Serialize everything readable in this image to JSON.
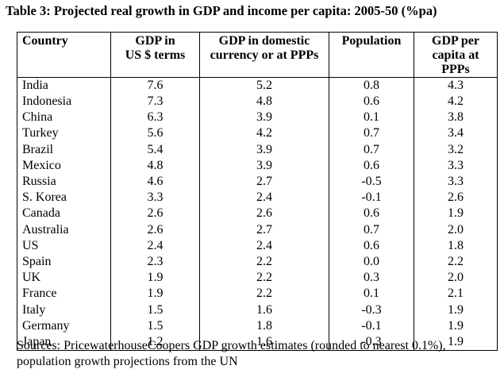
{
  "title": "Table 3: Projected real growth in GDP and income per capita: 2005-50 (%pa)",
  "table": {
    "headers": {
      "country": "Country",
      "gdp_usd": [
        "GDP in",
        "US $ terms"
      ],
      "gdp_domestic": [
        "GDP in domestic",
        "currency or at PPPs"
      ],
      "population": "Population",
      "gdp_per_capita": [
        "GDP per",
        "capita at PPPs"
      ]
    },
    "rows": [
      {
        "country": "India",
        "gdp_usd": "7.6",
        "gdp_domestic": "5.2",
        "population": "0.8",
        "gdp_per_capita": "4.3"
      },
      {
        "country": "Indonesia",
        "gdp_usd": "7.3",
        "gdp_domestic": "4.8",
        "population": "0.6",
        "gdp_per_capita": "4.2"
      },
      {
        "country": "China",
        "gdp_usd": "6.3",
        "gdp_domestic": "3.9",
        "population": "0.1",
        "gdp_per_capita": "3.8"
      },
      {
        "country": "Turkey",
        "gdp_usd": "5.6",
        "gdp_domestic": "4.2",
        "population": "0.7",
        "gdp_per_capita": "3.4"
      },
      {
        "country": "Brazil",
        "gdp_usd": "5.4",
        "gdp_domestic": "3.9",
        "population": "0.7",
        "gdp_per_capita": "3.2"
      },
      {
        "country": "Mexico",
        "gdp_usd": "4.8",
        "gdp_domestic": "3.9",
        "population": "0.6",
        "gdp_per_capita": "3.3"
      },
      {
        "country": "Russia",
        "gdp_usd": "4.6",
        "gdp_domestic": "2.7",
        "population": "-0.5",
        "gdp_per_capita": "3.3"
      },
      {
        "country": "S. Korea",
        "gdp_usd": "3.3",
        "gdp_domestic": "2.4",
        "population": "-0.1",
        "gdp_per_capita": "2.6"
      },
      {
        "country": "Canada",
        "gdp_usd": "2.6",
        "gdp_domestic": "2.6",
        "population": "0.6",
        "gdp_per_capita": "1.9"
      },
      {
        "country": "Australia",
        "gdp_usd": "2.6",
        "gdp_domestic": "2.7",
        "population": "0.7",
        "gdp_per_capita": "2.0"
      },
      {
        "country": "US",
        "gdp_usd": "2.4",
        "gdp_domestic": "2.4",
        "population": "0.6",
        "gdp_per_capita": "1.8"
      },
      {
        "country": "Spain",
        "gdp_usd": "2.3",
        "gdp_domestic": "2.2",
        "population": "0.0",
        "gdp_per_capita": "2.2"
      },
      {
        "country": "UK",
        "gdp_usd": "1.9",
        "gdp_domestic": "2.2",
        "population": "0.3",
        "gdp_per_capita": "2.0"
      },
      {
        "country": "France",
        "gdp_usd": "1.9",
        "gdp_domestic": "2.2",
        "population": "0.1",
        "gdp_per_capita": "2.1"
      },
      {
        "country": "Italy",
        "gdp_usd": "1.5",
        "gdp_domestic": "1.6",
        "population": "-0.3",
        "gdp_per_capita": "1.9"
      },
      {
        "country": "Germany",
        "gdp_usd": "1.5",
        "gdp_domestic": "1.8",
        "population": "-0.1",
        "gdp_per_capita": "1.9"
      },
      {
        "country": "Japan",
        "gdp_usd": "1.2",
        "gdp_domestic": "1.6",
        "population": "-0.3",
        "gdp_per_capita": "1.9"
      }
    ]
  },
  "source": "Sources: PricewaterhouseCoopers GDP growth estimates (rounded to nearest 0.1%), population growth projections from the UN"
}
